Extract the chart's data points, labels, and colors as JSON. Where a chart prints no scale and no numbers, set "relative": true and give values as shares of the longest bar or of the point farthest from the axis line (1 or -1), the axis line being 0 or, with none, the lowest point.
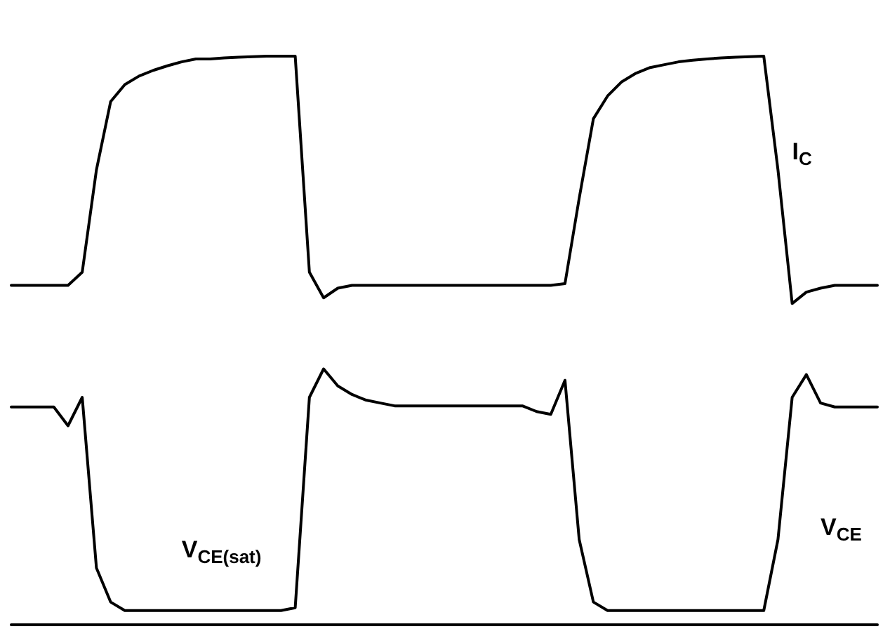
{
  "chart_data": {
    "type": "line",
    "relative": true,
    "legend": false,
    "grid": false,
    "marker": "none",
    "line_style": "solid",
    "categories": [
      null,
      null,
      null,
      null,
      null,
      null,
      null,
      null,
      null,
      null,
      null,
      null,
      null,
      null,
      null,
      null,
      null,
      null,
      null,
      null,
      null,
      null,
      null,
      null,
      null,
      null,
      null,
      null,
      null,
      null,
      null,
      null,
      null,
      null,
      null,
      null,
      null,
      null,
      null,
      null,
      null,
      null,
      null,
      null,
      null,
      null,
      null,
      null,
      null,
      null,
      null,
      null,
      null,
      null,
      null,
      null,
      null,
      null,
      null,
      null,
      null,
      null
    ],
    "series": [
      {
        "name": "I$_{C}$",
        "color": "#000000",
        "values": [
          0.597,
          0.597,
          0.597,
          0.597,
          0.597,
          0.62,
          0.8,
          0.92,
          0.95,
          0.965,
          0.975,
          0.983,
          0.99,
          0.995,
          0.995,
          0.997,
          0.998,
          0.999,
          1,
          1,
          1,
          0.62,
          0.575,
          0.592,
          0.597,
          0.597,
          0.597,
          0.597,
          0.597,
          0.597,
          0.597,
          0.597,
          0.597,
          0.597,
          0.597,
          0.597,
          0.597,
          0.597,
          0.597,
          0.6,
          0.75,
          0.89,
          0.93,
          0.955,
          0.97,
          0.98,
          0.985,
          0.99,
          0.993,
          0.995,
          0.997,
          0.998,
          0.999,
          1,
          0.8,
          0.565,
          0.585,
          0.592,
          0.597,
          0.597,
          0.597,
          0.597
        ]
      },
      {
        "name": "V$_{CE}$",
        "color": "#000000",
        "values": [
          0.383,
          0.383,
          0.383,
          0.383,
          0.35,
          0.4,
          0.1,
          0.04,
          0.025,
          0.025,
          0.025,
          0.025,
          0.025,
          0.025,
          0.025,
          0.025,
          0.025,
          0.025,
          0.025,
          0.025,
          0.03,
          0.4,
          0.45,
          0.42,
          0.405,
          0.395,
          0.39,
          0.385,
          0.385,
          0.385,
          0.385,
          0.385,
          0.385,
          0.385,
          0.385,
          0.385,
          0.385,
          0.375,
          0.37,
          0.43,
          0.15,
          0.04,
          0.025,
          0.025,
          0.025,
          0.025,
          0.025,
          0.025,
          0.025,
          0.025,
          0.025,
          0.025,
          0.025,
          0.025,
          0.15,
          0.4,
          0.44,
          0.39,
          0.383,
          0.383,
          0.383,
          0.383
        ]
      }
    ],
    "annotations": [
      "V$_{CE(sat)}$"
    ]
  }
}
